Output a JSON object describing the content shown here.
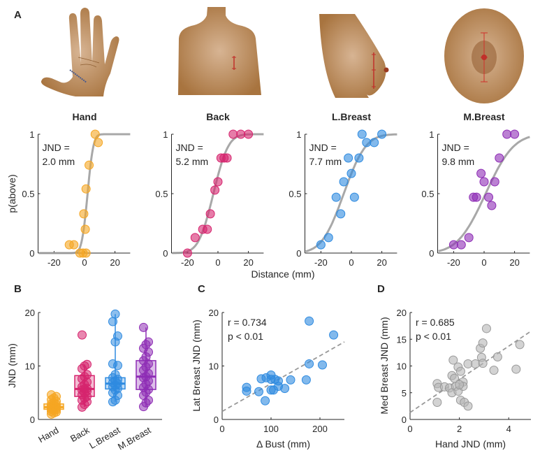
{
  "panel_labels": {
    "A": "A",
    "B": "B",
    "C": "C",
    "D": "D"
  },
  "colors": {
    "hand": "#f5a623",
    "back": "#d6246e",
    "lbreast": "#2f8be0",
    "mbreast": "#8e2db5",
    "gray": "#b5b5b5",
    "skin": "#b07c4e"
  },
  "chart_data": [
    {
      "type": "scatter",
      "title": "Hand",
      "color_key": "hand",
      "annotation": [
        "JND =",
        "2.0 mm"
      ],
      "ylabel": "p(above)",
      "xlim": [
        -30,
        30
      ],
      "ylim": [
        0,
        1
      ],
      "xticks": [
        -20,
        0,
        20
      ],
      "yticks": [
        0,
        0.5,
        1
      ],
      "yticklabels": [
        "0",
        "0.5",
        "1"
      ],
      "fit": {
        "mu": 2,
        "sigma": 3.0
      },
      "points": [
        [
          -10,
          0.07
        ],
        [
          -7,
          0.07
        ],
        [
          -3,
          0
        ],
        [
          -1,
          0
        ],
        [
          1,
          0
        ],
        [
          0.5,
          0.2
        ],
        [
          -0.5,
          0.33
        ],
        [
          1,
          0.54
        ],
        [
          3,
          0.74
        ],
        [
          7,
          1
        ],
        [
          9,
          0.93
        ]
      ]
    },
    {
      "type": "scatter",
      "title": "Back",
      "color_key": "back",
      "annotation": [
        "JND =",
        "5.2 mm"
      ],
      "xlim": [
        -30,
        30
      ],
      "ylim": [
        0,
        1
      ],
      "xticks": [
        -20,
        0,
        20
      ],
      "yticks": [
        0,
        0.5,
        1
      ],
      "yticklabels": [
        "0",
        "0.5",
        "1"
      ],
      "fit": {
        "mu": -3,
        "sigma": 7.7
      },
      "points": [
        [
          -20,
          0
        ],
        [
          -15,
          0.13
        ],
        [
          -10,
          0.2
        ],
        [
          -7,
          0.2
        ],
        [
          -5,
          0.33
        ],
        [
          -2,
          0.53
        ],
        [
          0,
          0.6
        ],
        [
          2,
          0.8
        ],
        [
          4,
          0.8
        ],
        [
          6,
          0.8
        ],
        [
          10,
          1
        ],
        [
          15,
          1
        ],
        [
          20,
          1
        ]
      ]
    },
    {
      "type": "scatter",
      "title": "L.Breast",
      "color_key": "lbreast",
      "annotation": [
        "JND =",
        "7.7 mm"
      ],
      "xlim": [
        -30,
        30
      ],
      "ylim": [
        0,
        1
      ],
      "xticks": [
        -20,
        0,
        20
      ],
      "yticks": [
        0,
        0.5,
        1
      ],
      "yticklabels": [
        "0",
        "0.5",
        "1"
      ],
      "fit": {
        "mu": -5,
        "sigma": 11.4
      },
      "points": [
        [
          -20,
          0.07
        ],
        [
          -15,
          0.13
        ],
        [
          -10,
          0.47
        ],
        [
          -7,
          0.33
        ],
        [
          -5,
          0.6
        ],
        [
          -2,
          0.8
        ],
        [
          0,
          0.67
        ],
        [
          2,
          0.47
        ],
        [
          5,
          0.8
        ],
        [
          7,
          1
        ],
        [
          10,
          0.93
        ],
        [
          15,
          0.93
        ],
        [
          20,
          1
        ]
      ]
    },
    {
      "type": "scatter",
      "title": "M.Breast",
      "color_key": "mbreast",
      "annotation": [
        "JND =",
        "9.8 mm"
      ],
      "xlim": [
        -30,
        30
      ],
      "ylim": [
        0,
        1
      ],
      "xticks": [
        -20,
        0,
        20
      ],
      "yticks": [
        0,
        0.5,
        1
      ],
      "yticklabels": [
        "0",
        "0.5",
        "1"
      ],
      "fit": {
        "mu": 1,
        "sigma": 14.5
      },
      "points": [
        [
          -20,
          0.07
        ],
        [
          -15,
          0.07
        ],
        [
          -10,
          0.13
        ],
        [
          -7,
          0.47
        ],
        [
          -5,
          0.47
        ],
        [
          -2,
          0.67
        ],
        [
          0,
          0.6
        ],
        [
          3,
          0.47
        ],
        [
          5,
          0.4
        ],
        [
          7,
          0.6
        ],
        [
          10,
          0.8
        ],
        [
          15,
          1
        ],
        [
          20,
          1
        ]
      ]
    },
    {
      "type": "box",
      "ylabel": "JND (mm)",
      "ylim": [
        0,
        20
      ],
      "yticks": [
        0,
        10,
        20
      ],
      "categories": [
        "Hand",
        "Back",
        "L.Breast",
        "M.Breast"
      ],
      "color_keys": [
        "hand",
        "back",
        "lbreast",
        "mbreast"
      ],
      "boxes": [
        {
          "q1": 1.9,
          "median": 2.3,
          "q3": 2.9,
          "min": 1.0,
          "max": 4.6,
          "points": [
            1,
            1.2,
            1.4,
            1.5,
            1.7,
            1.8,
            1.9,
            2,
            2.1,
            2.2,
            2.3,
            2.4,
            2.5,
            2.6,
            2.8,
            2.9,
            3.1,
            3.4,
            3.7,
            4.0,
            4.3,
            4.6
          ]
        },
        {
          "q1": 4.3,
          "median": 5.7,
          "q3": 8.2,
          "min": 2.3,
          "max": 10.3,
          "points": [
            2.3,
            2.8,
            3.3,
            3.6,
            4.0,
            4.3,
            4.6,
            5.0,
            5.3,
            5.5,
            5.7,
            5.8,
            6.1,
            6.5,
            7.0,
            7.6,
            8.0,
            8.4,
            9.5,
            10.0,
            10.3,
            15.8
          ]
        },
        {
          "q1": 5.7,
          "median": 6.7,
          "q3": 7.8,
          "min": 3.3,
          "max": 19.7,
          "points": [
            3.3,
            3.6,
            4.5,
            5.0,
            5.5,
            5.8,
            6.1,
            6.4,
            6.7,
            6.9,
            7.2,
            7.5,
            7.8,
            8.4,
            10.1,
            10.4,
            14.5,
            15.6,
            18.3,
            19.7
          ]
        },
        {
          "q1": 5.6,
          "median": 8.0,
          "q3": 11.0,
          "min": 2.4,
          "max": 17.2,
          "points": [
            2.4,
            3.1,
            3.6,
            4.5,
            5.1,
            5.6,
            6.0,
            6.6,
            7.2,
            7.8,
            8.0,
            8.6,
            9.2,
            9.8,
            10.4,
            11.0,
            11.7,
            12.6,
            13.3,
            14.0,
            14.5,
            17.2
          ]
        }
      ]
    },
    {
      "type": "scatter",
      "xlabel": "Δ Bust (mm)",
      "ylabel": "Lat Breast JND (mm)",
      "xlim": [
        0,
        250
      ],
      "ylim": [
        0,
        20
      ],
      "xticks": [
        0,
        100,
        200
      ],
      "yticks": [
        0,
        10,
        20
      ],
      "color_key": "lbreast",
      "annotation": [
        "r = 0.734",
        "p < 0.01"
      ],
      "trend": [
        [
          0,
          1.5
        ],
        [
          250,
          14.5
        ]
      ],
      "points": [
        [
          50,
          6
        ],
        [
          50,
          5.3
        ],
        [
          75,
          5.2
        ],
        [
          80,
          7.6
        ],
        [
          90,
          7.8
        ],
        [
          88,
          3.5
        ],
        [
          100,
          8.3
        ],
        [
          100,
          7.5
        ],
        [
          100,
          5.5
        ],
        [
          105,
          5.5
        ],
        [
          108,
          7.5
        ],
        [
          115,
          6.2
        ],
        [
          115,
          7.2
        ],
        [
          128,
          5.8
        ],
        [
          140,
          7.4
        ],
        [
          172,
          7.4
        ],
        [
          178,
          18.4
        ],
        [
          178,
          10.4
        ],
        [
          205,
          10.2
        ],
        [
          228,
          15.8
        ]
      ]
    },
    {
      "type": "scatter",
      "xlabel": "Hand JND (mm)",
      "ylabel": "Med Breast JND (mm)",
      "xlim": [
        0,
        4.9
      ],
      "ylim": [
        0,
        20
      ],
      "xticks": [
        0,
        2,
        4
      ],
      "yticks": [
        0,
        5,
        10,
        15,
        20
      ],
      "color_key": "gray",
      "annotation": [
        "r = 0.685",
        "p < 0.01"
      ],
      "trend": [
        [
          0,
          1.3
        ],
        [
          4.9,
          16.5
        ]
      ],
      "points": [
        [
          1.1,
          3.2
        ],
        [
          1.1,
          6.7
        ],
        [
          1.15,
          6
        ],
        [
          1.4,
          6.1
        ],
        [
          1.6,
          5.9
        ],
        [
          1.7,
          5
        ],
        [
          1.7,
          8.2
        ],
        [
          1.75,
          11.1
        ],
        [
          1.8,
          7.7
        ],
        [
          1.85,
          6.2
        ],
        [
          1.95,
          9.8
        ],
        [
          1.95,
          5.3
        ],
        [
          2.05,
          9
        ],
        [
          2.05,
          3.6
        ],
        [
          2.15,
          7
        ],
        [
          2.15,
          6.2
        ],
        [
          2.2,
          3.2
        ],
        [
          2.35,
          2.5
        ],
        [
          2.35,
          10.4
        ],
        [
          2.65,
          10.4
        ],
        [
          2.85,
          13.3
        ],
        [
          2.9,
          11.6
        ],
        [
          2.95,
          14.3
        ],
        [
          2.95,
          10.5
        ],
        [
          3.1,
          17
        ],
        [
          3.4,
          9.2
        ],
        [
          3.55,
          11.7
        ],
        [
          4.3,
          9.4
        ],
        [
          4.45,
          14
        ],
        [
          2.0,
          6.5
        ]
      ]
    }
  ],
  "shared_xlabel_A": "Distance (mm)"
}
